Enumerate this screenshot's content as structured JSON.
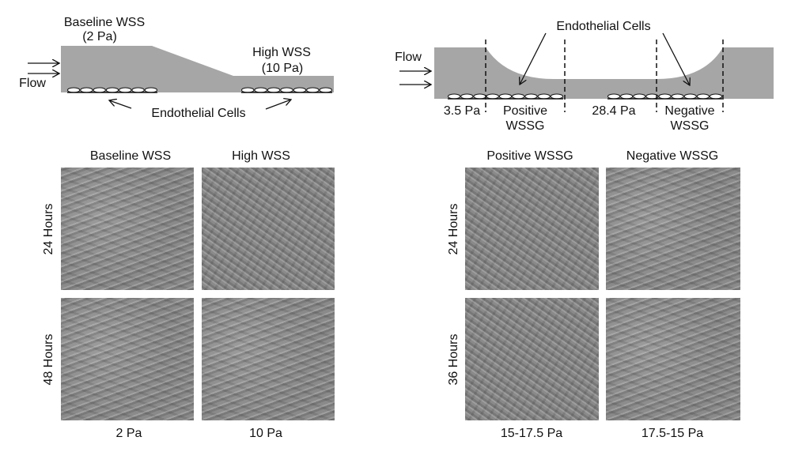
{
  "left_diagram": {
    "baseline_label": "Baseline WSS",
    "baseline_value": "(2 Pa)",
    "high_label": "High WSS",
    "high_value": "(10 Pa)",
    "flow_label": "Flow",
    "cells_label": "Endothelial Cells"
  },
  "right_diagram": {
    "flow_label": "Flow",
    "cells_label": "Endothelial Cells",
    "inlet_value": "3.5 Pa",
    "positive_label": "Positive",
    "positive_label2": "WSSG",
    "throat_value": "28.4 Pa",
    "negative_label": "Negative",
    "negative_label2": "WSSG"
  },
  "left_panel": {
    "columns": [
      "Baseline WSS",
      "High WSS"
    ],
    "rows": [
      "24 Hours",
      "48 Hours"
    ],
    "footers": [
      "2 Pa",
      "10 Pa"
    ]
  },
  "right_panel": {
    "columns": [
      "Positive WSSG",
      "Negative WSSG"
    ],
    "rows": [
      "24 Hours",
      "36 Hours"
    ],
    "footers": [
      "15-17.5 Pa",
      "17.5-15 Pa"
    ]
  },
  "colors": {
    "channel": "#a6a6a6",
    "line": "#111111"
  }
}
